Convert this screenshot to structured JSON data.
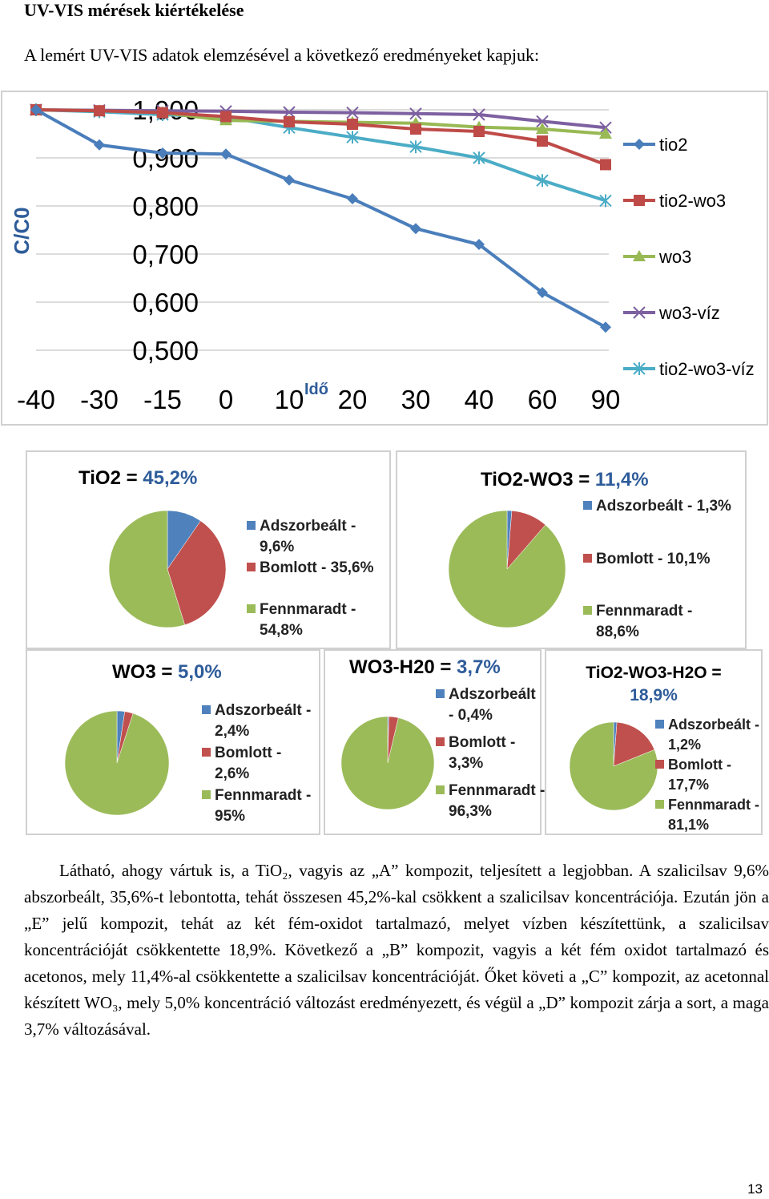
{
  "heading": "UV-VIS mérések kiértékelése",
  "intro": "A lemért UV-VIS adatok elemzésével a következő eredményeket kapjuk:",
  "chart_data": [
    {
      "type": "line",
      "ylabel": "C/C0",
      "xlabel": "Idő",
      "categories": [
        "-40",
        "-30",
        "-15",
        "0",
        "10",
        "20",
        "30",
        "40",
        "60",
        "90"
      ],
      "y_ticks": [
        "1,000",
        "0,900",
        "0,800",
        "0,700",
        "0,600",
        "0,500"
      ],
      "ylim": [
        0.5,
        1.0
      ],
      "grid": true,
      "legend": "right",
      "series": [
        {
          "name": "tio2",
          "color": "#4a7ebb",
          "marker": "diamond",
          "values": [
            1.0,
            0.927,
            0.91,
            0.908,
            0.854,
            0.815,
            0.753,
            0.72,
            0.62,
            0.548
          ]
        },
        {
          "name": "tio2-wo3",
          "color": "#be4b48",
          "marker": "square",
          "values": [
            1.0,
            0.998,
            0.994,
            0.986,
            0.975,
            0.97,
            0.96,
            0.955,
            0.935,
            0.886
          ]
        },
        {
          "name": "wo3",
          "color": "#98b954",
          "marker": "triangle",
          "values": [
            1.0,
            0.998,
            0.994,
            0.978,
            0.976,
            0.974,
            0.972,
            0.964,
            0.96,
            0.95
          ]
        },
        {
          "name": "wo3-víz",
          "color": "#7d60a0",
          "marker": "x",
          "values": [
            1.0,
            0.999,
            0.998,
            0.997,
            0.995,
            0.994,
            0.992,
            0.99,
            0.976,
            0.963
          ]
        },
        {
          "name": "tio2-wo3-víz",
          "color": "#4bacc6",
          "marker": "asterisk",
          "values": [
            1.0,
            0.996,
            0.99,
            0.985,
            0.963,
            0.943,
            0.923,
            0.9,
            0.853,
            0.811
          ]
        }
      ]
    },
    {
      "type": "pie",
      "title_label": "TiO2 = ",
      "title_value": "45,2%",
      "slices": [
        {
          "label": "Adszorbeált - 9,6%",
          "value": 9.6,
          "color": "#4f81bd"
        },
        {
          "label": "Bomlott - 35,6%",
          "value": 35.6,
          "color": "#c0504d"
        },
        {
          "label": "Fennmaradt - 54,8%",
          "value": 54.8,
          "color": "#9bbb59"
        }
      ]
    },
    {
      "type": "pie",
      "title_label": "TiO2-WO3 = ",
      "title_value": "11,4%",
      "slices": [
        {
          "label": "Adszorbeált - 1,3%",
          "value": 1.3,
          "color": "#4f81bd"
        },
        {
          "label": "Bomlott - 10,1%",
          "value": 10.1,
          "color": "#c0504d"
        },
        {
          "label": "Fennmaradt - 88,6%",
          "value": 88.6,
          "color": "#9bbb59"
        }
      ]
    },
    {
      "type": "pie",
      "title_label": "WO3 = ",
      "title_value": "5,0%",
      "slices": [
        {
          "label": "Adszorbeált - 2,4%",
          "value": 2.4,
          "color": "#4f81bd"
        },
        {
          "label": "Bomlott - 2,6%",
          "value": 2.6,
          "color": "#c0504d"
        },
        {
          "label": "Fennmaradt - 95%",
          "value": 95,
          "color": "#9bbb59"
        }
      ]
    },
    {
      "type": "pie",
      "title_label": "WO3-H20 = ",
      "title_value": "3,7%",
      "slices": [
        {
          "label": "Adszorbeált - 0,4%",
          "value": 0.4,
          "color": "#4f81bd"
        },
        {
          "label": "Bomlott - 3,3%",
          "value": 3.3,
          "color": "#c0504d"
        },
        {
          "label": "Fennmaradt - 96,3%",
          "value": 96.3,
          "color": "#9bbb59"
        }
      ]
    },
    {
      "type": "pie",
      "title_label": "TiO2-WO3-H2O = ",
      "title_value": "18,9%",
      "slices": [
        {
          "label": "Adszorbeált - 1,2%",
          "value": 1.2,
          "color": "#4f81bd"
        },
        {
          "label": "Bomlott - 17,7%",
          "value": 17.7,
          "color": "#c0504d"
        },
        {
          "label": "Fennmaradt - 81,1%",
          "value": 81.1,
          "color": "#9bbb59"
        }
      ]
    }
  ],
  "paragraph": "Látható, ahogy vártuk is,  a TiO₂, vagyis az „A” kompozit, teljesített a legjobban. A szalicilsav 9,6% abszorbeált, 35,6%-t lebontotta, tehát összesen 45,2%-kal csökkent a szalicilsav koncentrációja. Ezután jön a „E” jelű kompozit, tehát az két fém-oxidot tartalmazó, melyet vízben készítettünk, a szalicilsav koncentrációját csökkentette 18,9%. Következő a „B” kompozit, vagyis a két fém oxidot tartalmazó és acetonos, mely 11,4%-al csökkentette a szalicilsav koncentrációját. Őket követi a „C” kompozit, az acetonnal készített WO₃, mely 5,0% koncentráció változást eredményezett, és végül a „D” kompozit zárja a sort, a maga 3,7% változásával.",
  "page_number": "13"
}
